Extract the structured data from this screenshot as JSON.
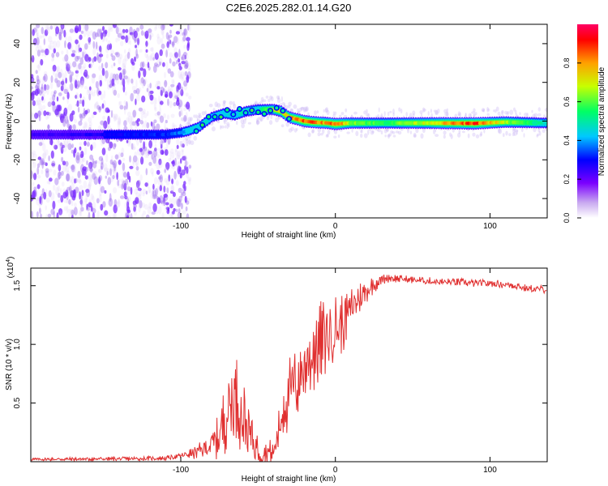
{
  "page": {
    "title": "C2E6.2025.282.01.14.G20"
  },
  "chart_data": [
    {
      "type": "heatmap",
      "name": "spectrogram",
      "xlabel": "Height of straight line (km)",
      "ylabel": "Frequency (Hz)",
      "xlim": [
        -197,
        137
      ],
      "ylim": [
        -50,
        50
      ],
      "xticks": [
        -100,
        0,
        100
      ],
      "yticks": [
        -40,
        -20,
        0,
        20,
        40
      ],
      "colorbar": {
        "label": "Normalized spectral amplitude",
        "range": [
          0,
          1
        ],
        "ticks": [
          0,
          0.2,
          0.4,
          0.6,
          0.8
        ],
        "colors": [
          "#ffffff",
          "#c8a8f0",
          "#7b00ff",
          "#0000ff",
          "#00c8ff",
          "#00ff64",
          "#c8ff00",
          "#ffa000",
          "#ff0000",
          "#ff0064"
        ]
      },
      "ridge": {
        "description": "dominant frequency track vs height",
        "x": [
          -197,
          -150,
          -110,
          -100,
          -95,
          -88,
          -80,
          -72,
          -65,
          -58,
          -50,
          -45,
          -40,
          -35,
          -30,
          -25,
          -20,
          -15,
          -5,
          0,
          10,
          30,
          60,
          90,
          110,
          137
        ],
        "y": [
          -7,
          -7,
          -7,
          -6,
          -5,
          -3,
          2,
          4,
          3,
          5,
          6,
          6,
          6,
          5,
          2,
          1,
          0,
          -0.5,
          -1,
          -1.5,
          -1,
          -1,
          -1,
          -1.2,
          -0.5,
          -1
        ],
        "amplitude": [
          0.25,
          0.3,
          0.35,
          0.4,
          0.45,
          0.5,
          0.45,
          0.5,
          0.45,
          0.55,
          0.5,
          0.6,
          0.7,
          0.8,
          0.85,
          0.9,
          0.95,
          0.9,
          0.85,
          0.95,
          0.7,
          0.6,
          0.75,
          0.95,
          0.7,
          0.5
        ]
      },
      "noise_region": {
        "x": [
          -197,
          -100
        ],
        "y": [
          -50,
          50
        ]
      }
    },
    {
      "type": "line",
      "name": "snr",
      "xlabel": "Height of straight line (km)",
      "ylabel": "SNR (10 * v/v)",
      "y_multiplier_label": "(x10",
      "y_multiplier_exp": "4",
      "y_multiplier_close": ")",
      "xlim": [
        -197,
        137
      ],
      "ylim": [
        0,
        1.65
      ],
      "xticks": [
        -100,
        0,
        100
      ],
      "yticks": [
        0.5,
        1.0,
        1.5
      ],
      "ytick_labels": [
        "0.5",
        "1.0",
        "1.5"
      ],
      "color": "#e03030",
      "envelope": {
        "x": [
          -197,
          -130,
          -110,
          -100,
          -90,
          -82,
          -76,
          -72,
          -68,
          -64,
          -60,
          -56,
          -52,
          -48,
          -44,
          -40,
          -36,
          -33,
          -30,
          -26,
          -22,
          -18,
          -14,
          -10,
          -6,
          -2,
          2,
          6,
          10,
          14,
          18,
          22,
          26,
          30,
          34,
          40,
          50,
          60,
          70,
          80,
          90,
          100,
          110,
          118,
          122,
          130,
          137
        ],
        "y": [
          0.02,
          0.025,
          0.03,
          0.05,
          0.08,
          0.13,
          0.2,
          0.35,
          0.5,
          0.55,
          0.4,
          0.25,
          0.15,
          0.1,
          0.08,
          0.07,
          0.3,
          0.5,
          0.55,
          0.65,
          0.75,
          0.85,
          0.95,
          1.0,
          1.08,
          1.12,
          1.15,
          1.2,
          1.3,
          1.38,
          1.42,
          1.48,
          1.52,
          1.55,
          1.57,
          1.56,
          1.55,
          1.54,
          1.53,
          1.53,
          1.52,
          1.52,
          1.51,
          1.5,
          1.48,
          1.47,
          1.47
        ]
      },
      "noise_amplitude": {
        "x": [
          -197,
          -100,
          -80,
          -70,
          -60,
          -50,
          -40,
          -30,
          -20,
          -10,
          0,
          10,
          20,
          30,
          40,
          137
        ],
        "y": [
          0.008,
          0.012,
          0.06,
          0.2,
          0.22,
          0.1,
          0.06,
          0.2,
          0.22,
          0.22,
          0.18,
          0.12,
          0.06,
          0.03,
          0.02,
          0.02
        ]
      }
    }
  ]
}
